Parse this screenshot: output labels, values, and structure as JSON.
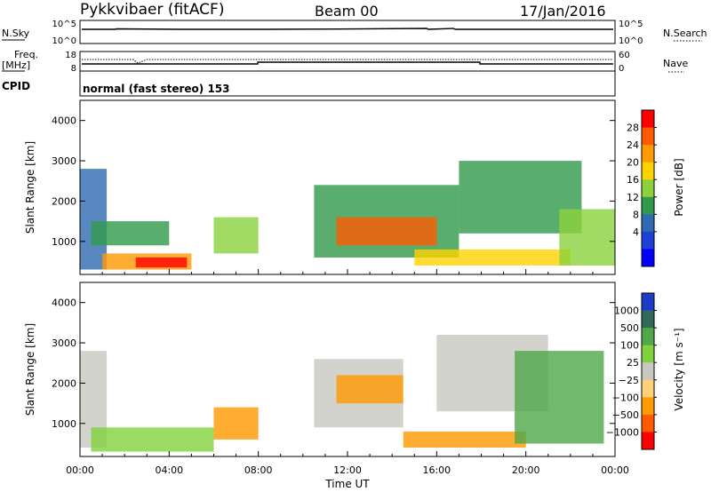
{
  "header": {
    "radar": "Pykkvibaer (fitACF)",
    "beam": "Beam 00",
    "date": "17/Jan/2016"
  },
  "top_panels": {
    "nsky_label": "N.Sky",
    "nsky_ticks": [
      "10^5",
      "10^0"
    ],
    "nsearch_label": "N.Search",
    "nsearch_ticks": [
      "10^5",
      "10^0"
    ],
    "freq_label_line1": "Freq.",
    "freq_label_line2": "[MHz]",
    "freq_ticks": [
      "18",
      "8"
    ],
    "nave_label": "Nave",
    "nave_ticks": [
      "60",
      "0"
    ],
    "cpid_label": "CPID",
    "cpid_text": "normal (fast stereo) 153"
  },
  "chart_data": [
    {
      "type": "heatmap",
      "name": "power",
      "ylabel": "Slant Range [km]",
      "yticks": [
        "4000",
        "3000",
        "2000",
        "1000"
      ],
      "ylim": [
        180,
        4500
      ],
      "colorbar_label": "Power [dB]",
      "colorbar_ticks": [
        "28",
        "24",
        "20",
        "16",
        "12",
        "8",
        "4"
      ],
      "colorbar_colors": [
        "#ff0000",
        "#ff5a00",
        "#ff9a00",
        "#ffd200",
        "#8bd23c",
        "#2f9a4a",
        "#2f6ab2",
        "#1c40d8",
        "#0000ff"
      ],
      "regions": [
        {
          "x": [
            0.0,
            1.2
          ],
          "y": [
            300,
            2800
          ],
          "level": 6
        },
        {
          "x": [
            1.0,
            5.0
          ],
          "y": [
            300,
            700
          ],
          "level": 2
        },
        {
          "x": [
            2.5,
            4.8
          ],
          "y": [
            350,
            600
          ],
          "level": 0
        },
        {
          "x": [
            0.5,
            4.0
          ],
          "y": [
            900,
            1500
          ],
          "level": 5
        },
        {
          "x": [
            6.0,
            8.0
          ],
          "y": [
            700,
            1600
          ],
          "level": 4
        },
        {
          "x": [
            10.5,
            17.0
          ],
          "y": [
            600,
            2400
          ],
          "level": 5
        },
        {
          "x": [
            11.5,
            16.0
          ],
          "y": [
            900,
            1600
          ],
          "level": 1
        },
        {
          "x": [
            15.0,
            22.0
          ],
          "y": [
            400,
            800
          ],
          "level": 3
        },
        {
          "x": [
            17.0,
            22.5
          ],
          "y": [
            1200,
            3000
          ],
          "level": 5
        },
        {
          "x": [
            21.5,
            24.0
          ],
          "y": [
            400,
            1800
          ],
          "level": 4
        }
      ]
    },
    {
      "type": "heatmap",
      "name": "velocity",
      "xlabel": "Time UT",
      "xticks": [
        "00:00",
        "04:00",
        "08:00",
        "12:00",
        "16:00",
        "20:00",
        "00:00"
      ],
      "xlim": [
        0,
        24
      ],
      "ylabel": "Slant Range [km]",
      "yticks": [
        "4000",
        "3000",
        "2000",
        "1000"
      ],
      "ylim": [
        180,
        4500
      ],
      "colorbar_label": "Velocity [m s⁻¹]",
      "colorbar_ticks": [
        "1000",
        "500",
        "100",
        "25",
        "−25",
        "−100",
        "−500",
        "−1000"
      ],
      "colorbar_colors": [
        "#1c3cc8",
        "#2f6a5a",
        "#4fa84a",
        "#7fd23c",
        "#c8c8c0",
        "#ffd27a",
        "#ff9a00",
        "#ff5a00",
        "#ff0000"
      ],
      "regions": [
        {
          "x": [
            0.0,
            1.2
          ],
          "y": [
            400,
            2800
          ],
          "level": 4
        },
        {
          "x": [
            0.5,
            6.0
          ],
          "y": [
            300,
            900
          ],
          "level": 3
        },
        {
          "x": [
            6.0,
            8.0
          ],
          "y": [
            600,
            1400
          ],
          "level": 6
        },
        {
          "x": [
            10.5,
            14.5
          ],
          "y": [
            900,
            2600
          ],
          "level": 4
        },
        {
          "x": [
            11.5,
            14.5
          ],
          "y": [
            1500,
            2200
          ],
          "level": 6
        },
        {
          "x": [
            14.5,
            20.0
          ],
          "y": [
            400,
            800
          ],
          "level": 6
        },
        {
          "x": [
            16.0,
            21.0
          ],
          "y": [
            1300,
            3200
          ],
          "level": 4
        },
        {
          "x": [
            19.5,
            23.5
          ],
          "y": [
            500,
            2800
          ],
          "level": 2
        }
      ]
    }
  ]
}
